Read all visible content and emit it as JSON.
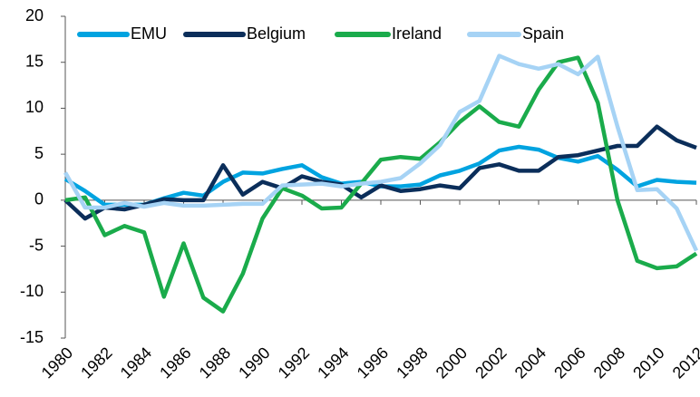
{
  "chart_data": {
    "type": "line",
    "x": [
      1980,
      1981,
      1982,
      1983,
      1984,
      1985,
      1986,
      1987,
      1988,
      1989,
      1990,
      1991,
      1992,
      1993,
      1994,
      1995,
      1996,
      1997,
      1998,
      1999,
      2000,
      2001,
      2002,
      2003,
      2004,
      2005,
      2006,
      2007,
      2008,
      2009,
      2010,
      2011,
      2012
    ],
    "xlim": [
      1980,
      2012
    ],
    "xticks": [
      1980,
      1982,
      1984,
      1986,
      1988,
      1990,
      1992,
      1994,
      1996,
      1998,
      2000,
      2002,
      2004,
      2006,
      2008,
      2010,
      2012
    ],
    "ylim": [
      -15,
      20
    ],
    "yticks": [
      -15,
      -10,
      -5,
      0,
      5,
      10,
      15,
      20
    ],
    "grid": false,
    "legend": "top",
    "series": [
      {
        "name": "EMU",
        "color": "#00a3e0",
        "values": [
          2.3,
          1.0,
          -0.5,
          -0.5,
          -0.5,
          0.2,
          0.8,
          0.5,
          2.0,
          3.0,
          2.9,
          3.4,
          3.8,
          2.5,
          1.8,
          2.0,
          1.5,
          1.5,
          1.7,
          2.7,
          3.2,
          4.0,
          5.4,
          5.8,
          5.5,
          4.6,
          4.2,
          4.8,
          3.3,
          1.5,
          2.2,
          2.0,
          1.9
        ]
      },
      {
        "name": "Belgium",
        "color": "#0b2e5a",
        "values": [
          0,
          -2.0,
          -0.8,
          -1.0,
          -0.5,
          0.1,
          0,
          0,
          3.8,
          0.6,
          2.0,
          1.3,
          2.6,
          2.0,
          1.7,
          0.3,
          1.6,
          1.0,
          1.2,
          1.6,
          1.3,
          3.5,
          3.9,
          3.2,
          3.2,
          4.7,
          4.9,
          5.4,
          5.9,
          5.9,
          8.0,
          6.5,
          5.7
        ]
      },
      {
        "name": "Ireland",
        "color": "#1aab4b",
        "values": [
          0,
          0.3,
          -3.8,
          -2.8,
          -3.5,
          -10.5,
          -4.7,
          -10.6,
          -12.1,
          -8.0,
          -2.0,
          1.3,
          0.5,
          -0.9,
          -0.8,
          1.8,
          4.4,
          4.7,
          4.5,
          6.3,
          8.5,
          10.2,
          8.5,
          8.0,
          12.0,
          15.0,
          15.5,
          10.6,
          0,
          -6.6,
          -7.4,
          -7.2,
          -5.8
        ]
      },
      {
        "name": "Spain",
        "color": "#a6d3f5",
        "values": [
          3.0,
          -0.8,
          -0.8,
          -0.3,
          -0.7,
          -0.3,
          -0.6,
          -0.6,
          -0.5,
          -0.4,
          -0.4,
          1.6,
          1.7,
          1.8,
          1.5,
          1.8,
          2.0,
          2.4,
          4.0,
          6.0,
          9.6,
          10.8,
          15.7,
          14.8,
          14.3,
          14.8,
          13.7,
          15.6,
          8.0,
          1.1,
          1.2,
          -0.9,
          -5.5
        ]
      }
    ]
  }
}
